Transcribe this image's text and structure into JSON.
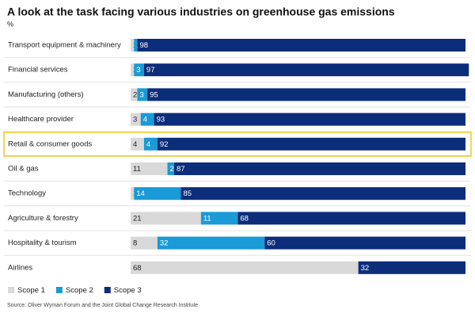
{
  "chart_data": {
    "type": "stacked-bar-horizontal",
    "title": "A look at the task facing various industries on greenhouse gas emissions",
    "unit": "%",
    "categories": [
      "Transport equipment & machinery",
      "Financial services",
      "Manufacturing (others)",
      "Healthcare provider",
      "Retail & consumer goods",
      "Oil & gas",
      "Technology",
      "Agriculture & forestry",
      "Hospitality & tourism",
      "Airlines"
    ],
    "series": [
      {
        "name": "Scope 1",
        "color": "#d9d9d9",
        "values": [
          1,
          1,
          2,
          3,
          4,
          11,
          1,
          21,
          8,
          68
        ]
      },
      {
        "name": "Scope 2",
        "color": "#1a9ad6",
        "values": [
          1,
          3,
          3,
          4,
          4,
          2,
          14,
          11,
          32,
          null
        ]
      },
      {
        "name": "Scope 3",
        "color": "#0c2d7a",
        "values": [
          98,
          97,
          95,
          93,
          92,
          87,
          85,
          68,
          60,
          32
        ]
      }
    ],
    "xlim": [
      0,
      100
    ],
    "highlight": 4,
    "highlight_color": "#f5c518",
    "source": "Source: Oliver Wyman Forum and the Joint Global Change Research Institute"
  }
}
